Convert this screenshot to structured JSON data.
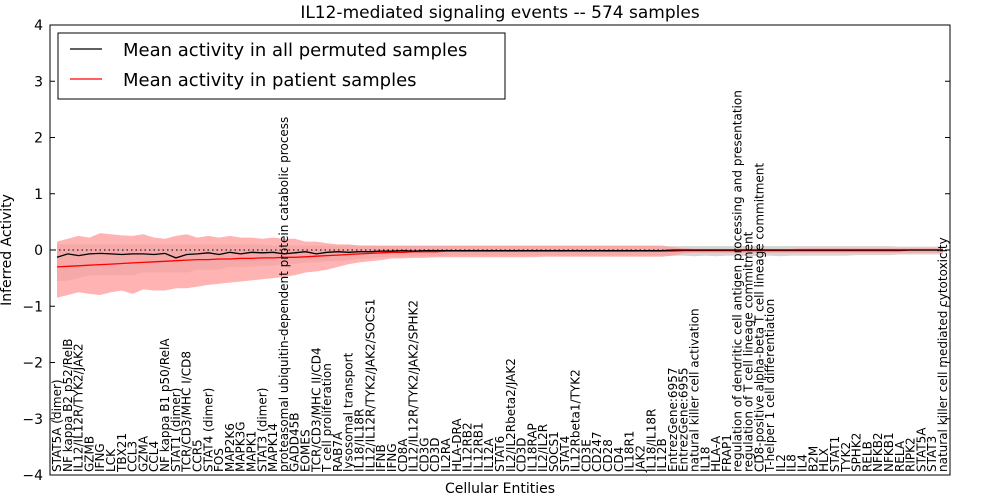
{
  "chart_data": {
    "type": "line",
    "title": "IL12-mediated signaling events -- 574 samples",
    "xlabel": "Cellular Entities",
    "ylabel": "Inferred Activity",
    "ylim": [
      -4,
      4
    ],
    "yticks": [
      -4,
      -3,
      -2,
      -1,
      0,
      1,
      2,
      3,
      4
    ],
    "ytick_labels": [
      "−4",
      "−3",
      "−2",
      "−1",
      "0",
      "1",
      "2",
      "3",
      "4"
    ],
    "grid": false,
    "legend_position": "top-left",
    "reference_line": 0,
    "categories": [
      "STAT5A (dimer)",
      "NF kappa B2 p52/RelB",
      "IL12/IL12R/TYK2/JAK2",
      "GZMB",
      "IFNG",
      "LCK",
      "TBX21",
      "CCL3",
      "GZMA",
      "CCL4",
      "NF kappa B1 p50/RelA",
      "STAT1 (dimer)",
      "TCR/CD3/MHC I/CD8",
      "CCR5",
      "STAT4 (dimer)",
      "FOS",
      "MAP2K6",
      "MAPK3G",
      "MAPK1",
      "STAT3 (dimer)",
      "MAPK14",
      "proteasomal ubiquitin-dependent protein catabolic process",
      "GADD45B",
      "EOMES",
      "TCR/CD3/MHC II/CD4",
      "T cell proliferation",
      "RAB7A",
      "lysosomal transport",
      "IL18/IL18R",
      "IL12/IL12R/TYK2/JAK2/SOCS1",
      "IFNB",
      "IFNG",
      "CD8A",
      "IL12/IL12R/TYK2/JAK2/SPHK2",
      "CD3G",
      "CD3D",
      "IL2RA",
      "HLA-DRA",
      "IL12RB2",
      "IL12RB1",
      "IL12A",
      "STAT6",
      "IL2/IL2Rbeta2/JAK2",
      "CD3D",
      "IL18RAP",
      "IL2/IL2R",
      "SOCS1",
      "STAT4",
      "IL12Rbeta1/TYK2",
      "CD3E",
      "CD247",
      "CD28",
      "CD4",
      "IL18R1",
      "JAK2",
      "IL18/IL18R",
      "IL12B",
      "EntrezGene:6957",
      "EntrezGene:6955",
      "natural killer cell activation",
      "IL18",
      "HLA-A",
      "FRAP1",
      "regulation of dendritic cell antigen processing and presentation",
      "regulation of T cell lineage commitment",
      "CD8-positive alpha-beta T cell lineage commitment",
      "T-helper 1 cell differentiation",
      "IL2",
      "IL8",
      "IL4",
      "B2M",
      "HLX",
      "STAT1",
      "TYK2",
      "SPHK2",
      "RELB",
      "NFKB2",
      "NFKB1",
      "RELA",
      "RIPK2",
      "STAT5A",
      "STAT3",
      "natural killer cell mediated cytotoxicity"
    ],
    "series": [
      {
        "name": "Mean activity in all permuted samples",
        "color": "#000000",
        "values": [
          -0.13,
          -0.07,
          -0.1,
          -0.07,
          -0.06,
          -0.07,
          -0.08,
          -0.07,
          -0.07,
          -0.08,
          -0.06,
          -0.14,
          -0.08,
          -0.07,
          -0.05,
          -0.08,
          -0.04,
          -0.07,
          -0.04,
          -0.05,
          -0.04,
          -0.07,
          -0.05,
          -0.03,
          -0.07,
          -0.04,
          -0.03,
          -0.04,
          -0.03,
          -0.03,
          -0.02,
          -0.02,
          -0.01,
          -0.02,
          -0.01,
          -0.01,
          -0.01,
          -0.01,
          -0.01,
          -0.01,
          -0.01,
          -0.01,
          -0.01,
          -0.01,
          -0.01,
          -0.01,
          -0.01,
          -0.01,
          -0.01,
          -0.01,
          -0.01,
          -0.01,
          -0.01,
          -0.01,
          -0.01,
          -0.01,
          -0.01,
          0.0,
          0.0,
          0.0,
          0.0,
          0.0,
          0.0,
          0.0,
          0.0,
          0.0,
          0.0,
          0.0,
          0.0,
          0.0,
          0.0,
          0.0,
          0.0,
          0.0,
          0.0,
          0.0,
          0.0,
          0.0,
          0.0,
          0.0,
          0.0,
          0.0,
          0.0
        ],
        "band": {
          "color": "#d0d0d0",
          "low": [
            -0.55,
            -0.55,
            -0.5,
            -0.45,
            -0.45,
            -0.45,
            -0.45,
            -0.45,
            -0.4,
            -0.4,
            -0.4,
            -0.4,
            -0.4,
            -0.35,
            -0.35,
            -0.35,
            -0.3,
            -0.3,
            -0.3,
            -0.28,
            -0.28,
            -0.25,
            -0.25,
            -0.22,
            -0.22,
            -0.2,
            -0.2,
            -0.18,
            -0.16,
            -0.15,
            -0.13,
            -0.12,
            -0.12,
            -0.11,
            -0.11,
            -0.11,
            -0.1,
            -0.1,
            -0.1,
            -0.1,
            -0.1,
            -0.1,
            -0.1,
            -0.1,
            -0.1,
            -0.1,
            -0.1,
            -0.1,
            -0.1,
            -0.1,
            -0.1,
            -0.1,
            -0.1,
            -0.1,
            -0.1,
            -0.1,
            -0.1,
            -0.1,
            -0.1,
            -0.11,
            -0.1,
            -0.11,
            -0.1,
            -0.1,
            -0.11,
            -0.1,
            -0.1,
            -0.11,
            -0.1,
            -0.1,
            -0.1,
            -0.1,
            -0.1,
            -0.1,
            -0.09,
            -0.09,
            -0.09,
            -0.09,
            -0.08,
            -0.08,
            -0.08,
            -0.08,
            -0.08
          ],
          "high": [
            0.1,
            0.1,
            0.1,
            0.1,
            0.1,
            0.1,
            0.1,
            0.1,
            0.1,
            0.1,
            0.1,
            0.1,
            0.1,
            0.1,
            0.1,
            0.1,
            0.1,
            0.1,
            0.1,
            0.1,
            0.08,
            0.08,
            0.08,
            0.08,
            0.08,
            0.08,
            0.08,
            0.08,
            0.08,
            0.08,
            0.07,
            0.07,
            0.07,
            0.07,
            0.07,
            0.07,
            0.07,
            0.07,
            0.07,
            0.07,
            0.07,
            0.07,
            0.07,
            0.07,
            0.07,
            0.07,
            0.07,
            0.07,
            0.07,
            0.07,
            0.07,
            0.07,
            0.07,
            0.07,
            0.07,
            0.07,
            0.07,
            0.07,
            0.07,
            0.07,
            0.07,
            0.07,
            0.07,
            0.07,
            0.07,
            0.07,
            0.07,
            0.07,
            0.07,
            0.07,
            0.07,
            0.07,
            0.07,
            0.07,
            0.07,
            0.07,
            0.07,
            0.07,
            0.06,
            0.06,
            0.06,
            0.06,
            0.06
          ]
        }
      },
      {
        "name": "Mean activity in patient samples",
        "color": "#ff0000",
        "values": [
          -0.3,
          -0.29,
          -0.28,
          -0.27,
          -0.26,
          -0.25,
          -0.24,
          -0.23,
          -0.22,
          -0.21,
          -0.2,
          -0.19,
          -0.18,
          -0.17,
          -0.17,
          -0.16,
          -0.16,
          -0.15,
          -0.15,
          -0.14,
          -0.14,
          -0.13,
          -0.13,
          -0.12,
          -0.11,
          -0.1,
          -0.09,
          -0.08,
          -0.07,
          -0.06,
          -0.05,
          -0.04,
          -0.04,
          -0.03,
          -0.03,
          -0.03,
          -0.02,
          -0.02,
          -0.02,
          -0.02,
          -0.02,
          -0.02,
          -0.02,
          -0.02,
          -0.02,
          -0.02,
          -0.02,
          -0.02,
          -0.02,
          -0.02,
          -0.02,
          -0.02,
          -0.02,
          -0.02,
          -0.02,
          -0.02,
          -0.02,
          -0.02,
          -0.01,
          -0.01,
          -0.01,
          -0.01,
          -0.01,
          -0.01,
          -0.01,
          -0.01,
          -0.01,
          -0.01,
          -0.01,
          -0.01,
          -0.01,
          -0.01,
          -0.01,
          -0.01,
          -0.01,
          -0.01,
          -0.01,
          -0.01,
          -0.01,
          0.0,
          0.0,
          0.0,
          0.0
        ],
        "band": {
          "color": "#ff9a9a",
          "low": [
            -0.85,
            -0.8,
            -0.75,
            -0.78,
            -0.8,
            -0.75,
            -0.72,
            -0.78,
            -0.7,
            -0.72,
            -0.72,
            -0.68,
            -0.68,
            -0.65,
            -0.62,
            -0.6,
            -0.58,
            -0.56,
            -0.54,
            -0.52,
            -0.5,
            -0.48,
            -0.45,
            -0.4,
            -0.38,
            -0.35,
            -0.3,
            -0.25,
            -0.22,
            -0.2,
            -0.18,
            -0.15,
            -0.15,
            -0.14,
            -0.14,
            -0.13,
            -0.13,
            -0.13,
            -0.13,
            -0.13,
            -0.13,
            -0.13,
            -0.13,
            -0.13,
            -0.13,
            -0.12,
            -0.12,
            -0.12,
            -0.12,
            -0.12,
            -0.12,
            -0.12,
            -0.12,
            -0.12,
            -0.12,
            -0.12,
            -0.12,
            -0.1,
            -0.06,
            -0.05,
            -0.05,
            -0.05,
            -0.05,
            -0.05,
            -0.05,
            -0.05,
            -0.05,
            -0.05,
            -0.05,
            -0.05,
            -0.05,
            -0.05,
            -0.05,
            -0.05,
            -0.05,
            -0.05,
            -0.05,
            -0.05,
            -0.05,
            -0.05,
            -0.05,
            -0.05,
            -0.05
          ],
          "high": [
            0.15,
            0.2,
            0.25,
            0.22,
            0.3,
            0.28,
            0.26,
            0.25,
            0.28,
            0.22,
            0.2,
            0.25,
            0.28,
            0.22,
            0.25,
            0.22,
            0.25,
            0.22,
            0.22,
            0.2,
            0.22,
            0.2,
            0.2,
            0.15,
            0.15,
            0.12,
            0.1,
            0.1,
            0.08,
            0.08,
            0.08,
            0.08,
            0.08,
            0.08,
            0.08,
            0.08,
            0.08,
            0.08,
            0.08,
            0.08,
            0.08,
            0.08,
            0.08,
            0.08,
            0.08,
            0.08,
            0.08,
            0.08,
            0.08,
            0.08,
            0.08,
            0.08,
            0.08,
            0.08,
            0.08,
            0.08,
            0.08,
            0.05,
            0.03,
            0.02,
            0.02,
            0.02,
            0.02,
            0.02,
            0.02,
            0.02,
            0.02,
            0.02,
            0.02,
            0.03,
            0.03,
            0.03,
            0.03,
            0.03,
            0.03,
            0.03,
            0.03,
            0.03,
            0.03,
            0.03,
            0.03,
            0.03,
            0.03
          ]
        }
      }
    ]
  }
}
